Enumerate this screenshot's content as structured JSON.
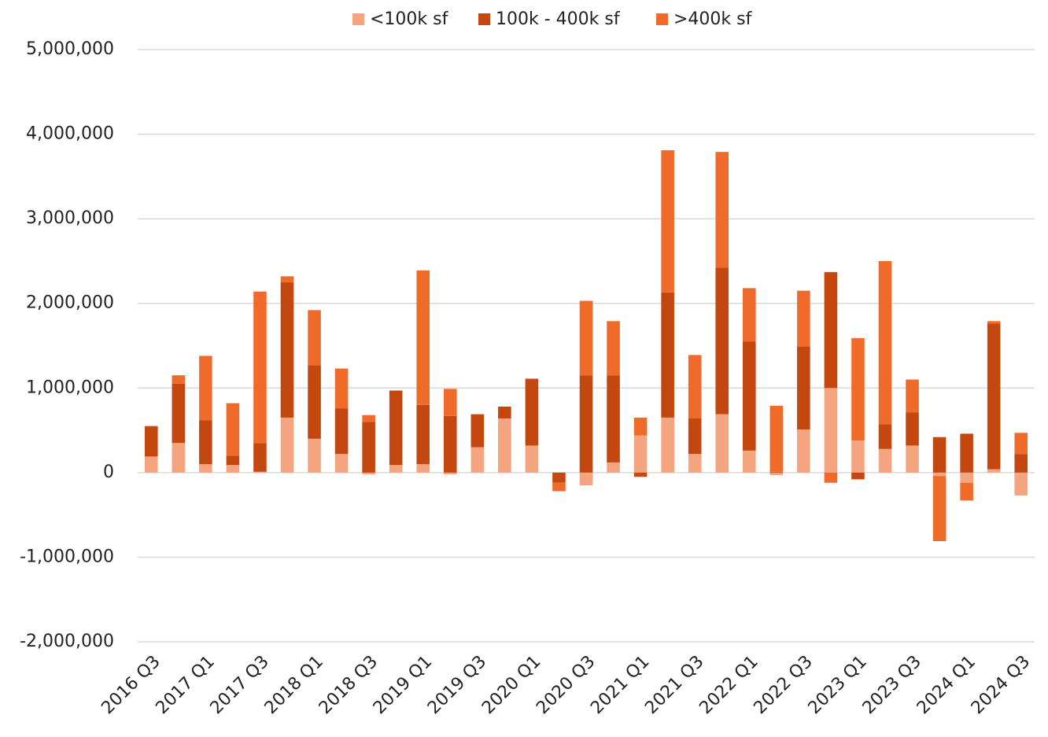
{
  "chart_data": {
    "type": "stacked_bar",
    "categories": [
      "2016 Q3",
      null,
      "2017 Q1",
      null,
      "2017 Q3",
      null,
      "2018 Q1",
      null,
      "2018 Q3",
      null,
      "2019 Q1",
      null,
      "2019 Q3",
      null,
      "2020 Q1",
      null,
      "2020 Q3",
      null,
      "2021 Q1",
      null,
      "2021 Q3",
      null,
      "2022 Q1",
      null,
      "2022 Q3",
      null,
      "2023 Q1",
      null,
      "2023 Q3",
      null,
      "2024 Q1",
      null,
      "2024 Q3"
    ],
    "series": [
      {
        "name": "<100k sf",
        "color": "#f4a47e",
        "values": [
          190000,
          350000,
          100000,
          90000,
          10000,
          650000,
          400000,
          220000,
          -20000,
          90000,
          100000,
          -20000,
          300000,
          640000,
          320000,
          0,
          -150000,
          120000,
          440000,
          650000,
          220000,
          690000,
          260000,
          -30000,
          510000,
          1000000,
          380000,
          280000,
          320000,
          -40000,
          -120000,
          40000,
          -270000
        ]
      },
      {
        "name": "100k - 400k sf",
        "color": "#c4470f",
        "values": [
          360000,
          700000,
          520000,
          110000,
          340000,
          1600000,
          870000,
          540000,
          600000,
          880000,
          700000,
          670000,
          390000,
          140000,
          790000,
          -120000,
          1150000,
          1030000,
          -50000,
          1480000,
          420000,
          1730000,
          1290000,
          10000,
          980000,
          1370000,
          -80000,
          290000,
          390000,
          420000,
          460000,
          1720000,
          220000
        ]
      },
      {
        "name": ">400k sf",
        "color": "#f06a2a",
        "values": [
          0,
          100000,
          760000,
          620000,
          1790000,
          70000,
          650000,
          470000,
          80000,
          0,
          1590000,
          320000,
          0,
          0,
          0,
          -100000,
          880000,
          640000,
          210000,
          1680000,
          750000,
          1370000,
          630000,
          780000,
          660000,
          -120000,
          1210000,
          1930000,
          390000,
          -770000,
          -210000,
          30000,
          250000
        ]
      }
    ],
    "ylim": [
      -2000000,
      5000000
    ],
    "yticks": [
      {
        "value": -2000000,
        "label": "-2,000,000"
      },
      {
        "value": -1000000,
        "label": "-1,000,000"
      },
      0,
      {
        "value": 1000000,
        "label": "1,000,000"
      },
      {
        "value": 2000000,
        "label": "2,000,000"
      },
      {
        "value": 3000000,
        "label": "3,000,000"
      },
      {
        "value": 4000000,
        "label": "4,000,000"
      },
      {
        "value": 5000000,
        "label": "5,000,000"
      }
    ],
    "grid": true,
    "legend": "top"
  }
}
